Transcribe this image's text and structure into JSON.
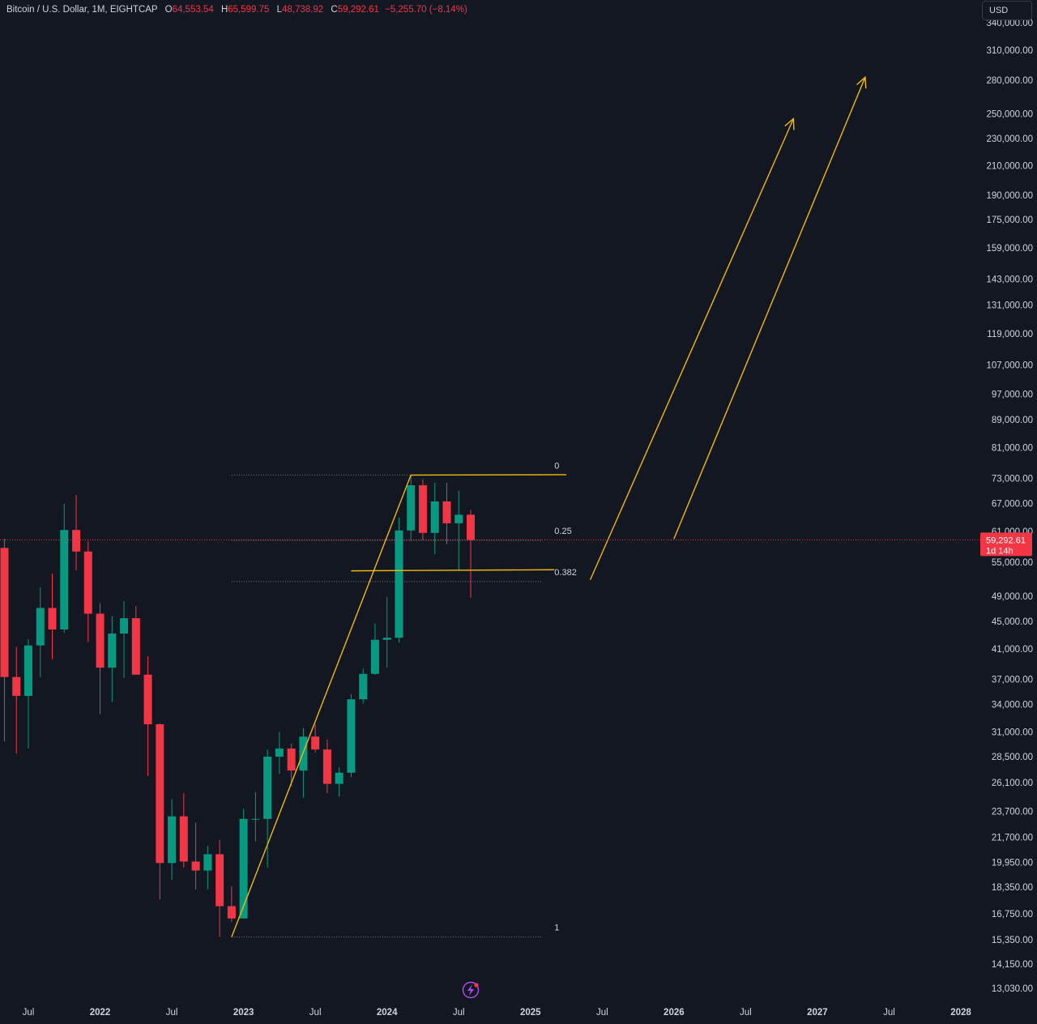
{
  "header": {
    "symbol": "Bitcoin / U.S. Dollar, 1M, EIGHTCAP",
    "open_label": "O",
    "open": "64,553.54",
    "high_label": "H",
    "high": "65,599.75",
    "low_label": "L",
    "low": "48,738.92",
    "close_label": "C",
    "close": "59,292.61",
    "change": "−5,255.70 (−8.14%)"
  },
  "currency_button": {
    "label": "USD"
  },
  "last_price_tag": {
    "price": "59,292.61",
    "countdown": "1d 14h"
  },
  "colors": {
    "background": "#131722",
    "up": "#089981",
    "down": "#f23645",
    "drawing": "#f0b90b",
    "fib_line": "#787b86",
    "text": "#d1d4dc"
  },
  "chart_data": {
    "type": "candlestick",
    "timeframe": "1M",
    "y_scale": "log",
    "ylim": [
      12500,
      350000
    ],
    "x_range": [
      "2021-05",
      "2028-02"
    ],
    "y_ticks": [
      "340,000.00",
      "310,000.00",
      "280,000.00",
      "250,000.00",
      "230,000.00",
      "210,000.00",
      "190,000.00",
      "175,000.00",
      "159,000.00",
      "143,000.00",
      "131,000.00",
      "119,000.00",
      "107,000.00",
      "97,000.00",
      "89,000.00",
      "81,000.00",
      "73,000.00",
      "67,000.00",
      "61,000.00",
      "55,000.00",
      "49,000.00",
      "45,000.00",
      "41,000.00",
      "37,000.00",
      "34,000.00",
      "31,000.00",
      "28,500.00",
      "26,100.00",
      "23,700.00",
      "21,700.00",
      "19,950.00",
      "18,350.00",
      "16,750.00",
      "15,350.00",
      "14,150.00",
      "13,030.00"
    ],
    "x_ticks": [
      {
        "label": "Jul",
        "date": "2021-07",
        "year": false
      },
      {
        "label": "2022",
        "date": "2022-01",
        "year": true
      },
      {
        "label": "Jul",
        "date": "2022-07",
        "year": false
      },
      {
        "label": "2023",
        "date": "2023-01",
        "year": true
      },
      {
        "label": "Jul",
        "date": "2023-07",
        "year": false
      },
      {
        "label": "2024",
        "date": "2024-01",
        "year": true
      },
      {
        "label": "Jul",
        "date": "2024-07",
        "year": false
      },
      {
        "label": "2025",
        "date": "2025-01",
        "year": true
      },
      {
        "label": "Jul",
        "date": "2025-07",
        "year": false
      },
      {
        "label": "2026",
        "date": "2026-01",
        "year": true
      },
      {
        "label": "Jul",
        "date": "2026-07",
        "year": false
      },
      {
        "label": "2027",
        "date": "2027-01",
        "year": true
      },
      {
        "label": "Jul",
        "date": "2027-07",
        "year": false
      },
      {
        "label": "2028",
        "date": "2028-01",
        "year": true
      }
    ],
    "candles": [
      {
        "date": "2021-05",
        "o": 57700,
        "h": 59500,
        "l": 30000,
        "c": 37300
      },
      {
        "date": "2021-06",
        "o": 37300,
        "h": 41300,
        "l": 28800,
        "c": 35000
      },
      {
        "date": "2021-07",
        "o": 35000,
        "h": 42400,
        "l": 29300,
        "c": 41500
      },
      {
        "date": "2021-08",
        "o": 41500,
        "h": 50500,
        "l": 37300,
        "c": 47100
      },
      {
        "date": "2021-09",
        "o": 47100,
        "h": 52900,
        "l": 39600,
        "c": 43800
      },
      {
        "date": "2021-10",
        "o": 43800,
        "h": 67000,
        "l": 43300,
        "c": 61300
      },
      {
        "date": "2021-11",
        "o": 61300,
        "h": 69000,
        "l": 53500,
        "c": 57000
      },
      {
        "date": "2021-12",
        "o": 57000,
        "h": 59000,
        "l": 42000,
        "c": 46200
      },
      {
        "date": "2022-01",
        "o": 46200,
        "h": 47900,
        "l": 32900,
        "c": 38500
      },
      {
        "date": "2022-02",
        "o": 38500,
        "h": 45800,
        "l": 34300,
        "c": 43200
      },
      {
        "date": "2022-03",
        "o": 43200,
        "h": 48200,
        "l": 37200,
        "c": 45500
      },
      {
        "date": "2022-04",
        "o": 45500,
        "h": 47400,
        "l": 37700,
        "c": 37600
      },
      {
        "date": "2022-05",
        "o": 37600,
        "h": 40000,
        "l": 26700,
        "c": 31800
      },
      {
        "date": "2022-06",
        "o": 31800,
        "h": 31900,
        "l": 17600,
        "c": 19900
      },
      {
        "date": "2022-07",
        "o": 19900,
        "h": 24700,
        "l": 18800,
        "c": 23300
      },
      {
        "date": "2022-08",
        "o": 23300,
        "h": 25200,
        "l": 19600,
        "c": 20000
      },
      {
        "date": "2022-09",
        "o": 20000,
        "h": 22800,
        "l": 18200,
        "c": 19400
      },
      {
        "date": "2022-10",
        "o": 19400,
        "h": 21100,
        "l": 18200,
        "c": 20500
      },
      {
        "date": "2022-11",
        "o": 20500,
        "h": 21500,
        "l": 15500,
        "c": 17200
      },
      {
        "date": "2022-12",
        "o": 17200,
        "h": 18400,
        "l": 16300,
        "c": 16500
      },
      {
        "date": "2023-01",
        "o": 16500,
        "h": 23900,
        "l": 16500,
        "c": 23100
      },
      {
        "date": "2023-02",
        "o": 23100,
        "h": 25300,
        "l": 21400,
        "c": 23100
      },
      {
        "date": "2023-03",
        "o": 23100,
        "h": 29200,
        "l": 19600,
        "c": 28500
      },
      {
        "date": "2023-04",
        "o": 28500,
        "h": 31000,
        "l": 26900,
        "c": 29300
      },
      {
        "date": "2023-05",
        "o": 29300,
        "h": 29800,
        "l": 25800,
        "c": 27200
      },
      {
        "date": "2023-06",
        "o": 27200,
        "h": 31400,
        "l": 24800,
        "c": 30500
      },
      {
        "date": "2023-07",
        "o": 30500,
        "h": 31800,
        "l": 28900,
        "c": 29200
      },
      {
        "date": "2023-08",
        "o": 29200,
        "h": 30200,
        "l": 25200,
        "c": 26000
      },
      {
        "date": "2023-09",
        "o": 26000,
        "h": 27500,
        "l": 24900,
        "c": 27000
      },
      {
        "date": "2023-10",
        "o": 27000,
        "h": 35200,
        "l": 26600,
        "c": 34600
      },
      {
        "date": "2023-11",
        "o": 34600,
        "h": 38400,
        "l": 34100,
        "c": 37700
      },
      {
        "date": "2023-12",
        "o": 37700,
        "h": 44700,
        "l": 37600,
        "c": 42300
      },
      {
        "date": "2024-01",
        "o": 42300,
        "h": 48900,
        "l": 38500,
        "c": 42600
      },
      {
        "date": "2024-02",
        "o": 42600,
        "h": 63900,
        "l": 41900,
        "c": 61200
      },
      {
        "date": "2024-03",
        "o": 61200,
        "h": 73800,
        "l": 59100,
        "c": 71300
      },
      {
        "date": "2024-04",
        "o": 71300,
        "h": 72800,
        "l": 59200,
        "c": 60700
      },
      {
        "date": "2024-05",
        "o": 60700,
        "h": 71900,
        "l": 56500,
        "c": 67500
      },
      {
        "date": "2024-06",
        "o": 67500,
        "h": 71900,
        "l": 58400,
        "c": 62700
      },
      {
        "date": "2024-07",
        "o": 62700,
        "h": 70000,
        "l": 53500,
        "c": 64550
      },
      {
        "date": "2024-08",
        "o": 64553.54,
        "h": 65599.75,
        "l": 48738.92,
        "c": 59292.61
      }
    ],
    "last_price": 59292.61,
    "fib_retracement": {
      "from_date": "2022-12",
      "to_date": "2025-02",
      "price_0": 73800,
      "price_1": 15500,
      "label_date": "2025-03",
      "levels": [
        {
          "label": "0",
          "price": 73800
        },
        {
          "label": "0.25",
          "price": 59200
        },
        {
          "label": "0.382",
          "price": 51500
        },
        {
          "label": "1",
          "price": 15500
        }
      ]
    },
    "drawings": [
      {
        "kind": "path",
        "points": [
          [
            "2022-12",
            15500
          ],
          [
            "2024-03",
            73800
          ],
          [
            "2025-04",
            73900
          ]
        ]
      },
      {
        "kind": "path",
        "points": [
          [
            "2023-10",
            53400
          ],
          [
            "2025-03",
            53600
          ]
        ]
      },
      {
        "kind": "arrow",
        "points": [
          [
            "2025-06",
            51800
          ],
          [
            "2026-11",
            246000
          ]
        ]
      },
      {
        "kind": "arrow",
        "points": [
          [
            "2026-01",
            59500
          ],
          [
            "2027-05",
            283000
          ]
        ]
      }
    ]
  }
}
